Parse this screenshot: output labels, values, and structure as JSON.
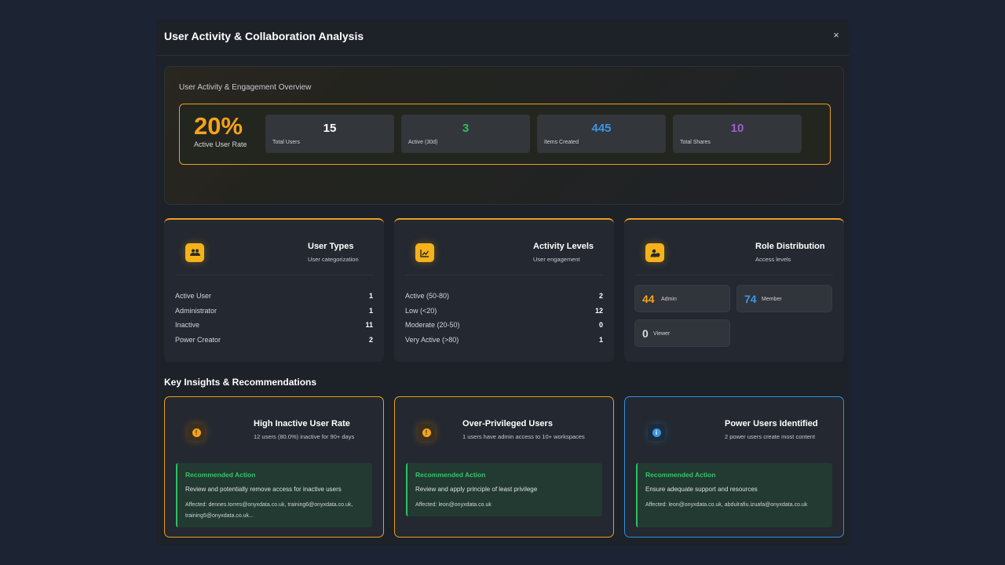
{
  "modal": {
    "title": "User Activity & Collaboration Analysis",
    "close_label": "×"
  },
  "overview": {
    "title": "User Activity & Engagement Overview",
    "rate_value": "20%",
    "rate_label": "Active User Rate",
    "stats": [
      {
        "value": "15",
        "label": "Total Users",
        "color": "#ffffff"
      },
      {
        "value": "3",
        "label": "Active (30d)",
        "color": "#2fbf62"
      },
      {
        "value": "445",
        "label": "Items Created",
        "color": "#3b96e4"
      },
      {
        "value": "10",
        "label": "Total Shares",
        "color": "#a05cd6"
      }
    ]
  },
  "user_types": {
    "title": "User Types",
    "subtitle": "User categorization",
    "icon": "users-icon",
    "rows": [
      {
        "label": "Active User",
        "value": "1"
      },
      {
        "label": "Administrator",
        "value": "1"
      },
      {
        "label": "Inactive",
        "value": "11"
      },
      {
        "label": "Power Creator",
        "value": "2"
      }
    ]
  },
  "activity_levels": {
    "title": "Activity Levels",
    "subtitle": "User engagement",
    "icon": "line-chart-icon",
    "rows": [
      {
        "label": "Active (50-80)",
        "value": "2"
      },
      {
        "label": "Low (<20)",
        "value": "12"
      },
      {
        "label": "Moderate (20-50)",
        "value": "0"
      },
      {
        "label": "Very Active (>80)",
        "value": "1"
      }
    ]
  },
  "role_distribution": {
    "title": "Role Distribution",
    "subtitle": "Access levels",
    "icon": "user-shield-icon",
    "roles": [
      {
        "value": "44",
        "label": "Admin",
        "color": "#f5a31a"
      },
      {
        "value": "74",
        "label": "Member",
        "color": "#3b96e4"
      },
      {
        "value": "0",
        "label": "Viewer",
        "color": "#d8dbe0"
      }
    ]
  },
  "insights": {
    "section_title": "Key Insights & Recommendations",
    "items": [
      {
        "title": "High Inactive User Rate",
        "subtitle": "12 users (80.0%) inactive for 90+ days",
        "icon": "warning-icon",
        "icon_glyph": "!",
        "rec_title": "Recommended Action",
        "rec_text": "Review and potentially remove access for inactive users",
        "affected": "Affected: dennes.torres@onyxdata.co.uk, training6@onyxdata.co.uk, training5@onyxdata.co.uk..."
      },
      {
        "title": "Over-Privileged Users",
        "subtitle": "1 users have admin access to 10+ workspaces",
        "icon": "warning-icon",
        "icon_glyph": "!",
        "rec_title": "Recommended Action",
        "rec_text": "Review and apply principle of least privilege",
        "affected": "Affected: leon@onyxdata.co.uk"
      },
      {
        "title": "Power Users Identified",
        "subtitle": "2 power users create most content",
        "icon": "info-icon",
        "icon_glyph": "i",
        "rec_title": "Recommended Action",
        "rec_text": "Ensure adequate support and resources",
        "affected": "Affected: leon@onyxdata.co.uk, abdulrafiu.izuafa@onyxdata.co.uk"
      }
    ]
  }
}
